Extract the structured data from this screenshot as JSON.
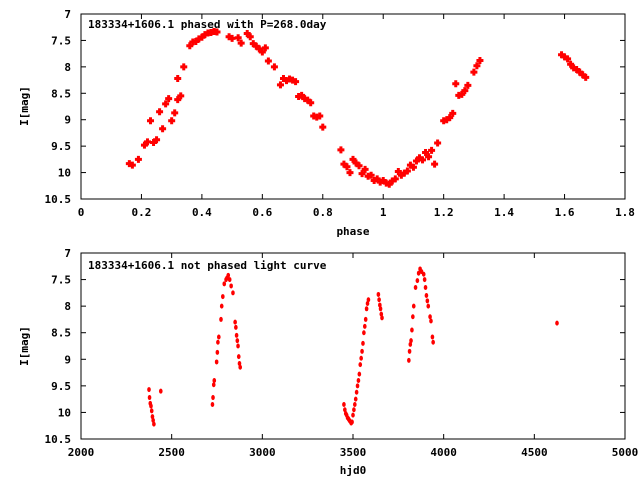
{
  "chart_data": [
    {
      "type": "scatter",
      "title": "183334+1606.1 phased with P=268.0day",
      "xlabel": "phase",
      "ylabel": "I[mag]",
      "xlim": [
        0,
        1.8
      ],
      "ylim": [
        10.5,
        7
      ],
      "y_inverted": true,
      "grid": false,
      "xticks": [
        "0",
        "0.2",
        "0.4",
        "0.6",
        "0.8",
        "1",
        "1.2",
        "1.4",
        "1.6",
        "1.8"
      ],
      "yticks": [
        "7",
        "7.5",
        "8",
        "8.5",
        "9",
        "9.5",
        "10",
        "10.5"
      ],
      "marker_color": "#ff0000",
      "points": [
        [
          0.16,
          9.83
        ],
        [
          0.17,
          9.86
        ],
        [
          0.19,
          9.75
        ],
        [
          0.21,
          9.48
        ],
        [
          0.22,
          9.42
        ],
        [
          0.23,
          9.02
        ],
        [
          0.24,
          9.43
        ],
        [
          0.25,
          9.38
        ],
        [
          0.26,
          8.85
        ],
        [
          0.27,
          9.17
        ],
        [
          0.28,
          8.7
        ],
        [
          0.29,
          8.6
        ],
        [
          0.3,
          9.02
        ],
        [
          0.31,
          8.87
        ],
        [
          0.32,
          8.62
        ],
        [
          0.32,
          8.22
        ],
        [
          0.33,
          8.55
        ],
        [
          0.34,
          8.0
        ],
        [
          0.36,
          7.6
        ],
        [
          0.37,
          7.53
        ],
        [
          0.38,
          7.52
        ],
        [
          0.39,
          7.47
        ],
        [
          0.4,
          7.44
        ],
        [
          0.41,
          7.39
        ],
        [
          0.42,
          7.36
        ],
        [
          0.43,
          7.35
        ],
        [
          0.44,
          7.33
        ],
        [
          0.45,
          7.34
        ],
        [
          0.49,
          7.43
        ],
        [
          0.5,
          7.46
        ],
        [
          0.52,
          7.45
        ],
        [
          0.53,
          7.55
        ],
        [
          0.55,
          7.37
        ],
        [
          0.56,
          7.43
        ],
        [
          0.57,
          7.56
        ],
        [
          0.58,
          7.61
        ],
        [
          0.59,
          7.66
        ],
        [
          0.6,
          7.72
        ],
        [
          0.61,
          7.64
        ],
        [
          0.62,
          7.89
        ],
        [
          0.64,
          8.0
        ],
        [
          0.66,
          8.34
        ],
        [
          0.67,
          8.22
        ],
        [
          0.68,
          8.26
        ],
        [
          0.69,
          8.23
        ],
        [
          0.7,
          8.25
        ],
        [
          0.71,
          8.28
        ],
        [
          0.72,
          8.56
        ],
        [
          0.73,
          8.54
        ],
        [
          0.74,
          8.6
        ],
        [
          0.75,
          8.63
        ],
        [
          0.76,
          8.68
        ],
        [
          0.77,
          8.93
        ],
        [
          0.78,
          8.95
        ],
        [
          0.79,
          8.93
        ],
        [
          0.8,
          9.14
        ],
        [
          0.86,
          9.57
        ],
        [
          0.87,
          9.84
        ],
        [
          0.88,
          9.89
        ],
        [
          0.89,
          10.0
        ],
        [
          0.9,
          9.75
        ],
        [
          0.91,
          9.82
        ],
        [
          0.92,
          9.87
        ],
        [
          0.93,
          10.02
        ],
        [
          0.94,
          9.94
        ],
        [
          0.95,
          10.07
        ],
        [
          0.96,
          10.05
        ],
        [
          0.97,
          10.15
        ],
        [
          0.98,
          10.12
        ],
        [
          0.99,
          10.18
        ],
        [
          1.0,
          10.15
        ],
        [
          1.01,
          10.2
        ],
        [
          1.02,
          10.22
        ],
        [
          1.03,
          10.16
        ],
        [
          1.04,
          10.12
        ],
        [
          1.05,
          9.98
        ],
        [
          1.06,
          10.05
        ],
        [
          1.07,
          10.01
        ],
        [
          1.08,
          9.97
        ],
        [
          1.09,
          9.86
        ],
        [
          1.1,
          9.9
        ],
        [
          1.11,
          9.78
        ],
        [
          1.12,
          9.72
        ],
        [
          1.13,
          9.76
        ],
        [
          1.14,
          9.62
        ],
        [
          1.15,
          9.7
        ],
        [
          1.16,
          9.58
        ],
        [
          1.17,
          9.84
        ],
        [
          1.18,
          9.44
        ],
        [
          1.2,
          9.02
        ],
        [
          1.21,
          9.0
        ],
        [
          1.22,
          8.96
        ],
        [
          1.23,
          8.88
        ],
        [
          1.24,
          8.32
        ],
        [
          1.25,
          8.54
        ],
        [
          1.26,
          8.52
        ],
        [
          1.27,
          8.45
        ],
        [
          1.28,
          8.35
        ],
        [
          1.3,
          8.1
        ],
        [
          1.31,
          7.98
        ],
        [
          1.32,
          7.88
        ],
        [
          1.59,
          7.77
        ],
        [
          1.6,
          7.81
        ],
        [
          1.61,
          7.85
        ],
        [
          1.62,
          7.95
        ],
        [
          1.63,
          8.02
        ],
        [
          1.64,
          8.05
        ],
        [
          1.65,
          8.1
        ],
        [
          1.66,
          8.15
        ],
        [
          1.67,
          8.2
        ]
      ]
    },
    {
      "type": "scatter",
      "title": "183334+1606.1 not phased light curve",
      "xlabel": "hjd0",
      "ylabel": "I[mag]",
      "xlim": [
        2000,
        5000
      ],
      "ylim": [
        10.5,
        7
      ],
      "y_inverted": true,
      "grid": false,
      "xticks": [
        "2000",
        "2500",
        "3000",
        "3500",
        "4000",
        "4500",
        "5000"
      ],
      "yticks": [
        "7",
        "7.5",
        "8",
        "8.5",
        "9",
        "9.5",
        "10",
        "10.5"
      ],
      "marker_color": "#ff0000",
      "points": [
        [
          2375,
          9.57
        ],
        [
          2378,
          9.72
        ],
        [
          2382,
          9.83
        ],
        [
          2386,
          9.88
        ],
        [
          2390,
          9.97
        ],
        [
          2394,
          10.08
        ],
        [
          2398,
          10.15
        ],
        [
          2402,
          10.22
        ],
        [
          2440,
          9.6
        ],
        [
          2725,
          9.85
        ],
        [
          2728,
          9.72
        ],
        [
          2732,
          9.48
        ],
        [
          2735,
          9.4
        ],
        [
          2748,
          9.05
        ],
        [
          2752,
          8.87
        ],
        [
          2755,
          8.68
        ],
        [
          2760,
          8.58
        ],
        [
          2772,
          8.25
        ],
        [
          2776,
          8.0
        ],
        [
          2782,
          7.82
        ],
        [
          2790,
          7.58
        ],
        [
          2800,
          7.5
        ],
        [
          2805,
          7.47
        ],
        [
          2812,
          7.42
        ],
        [
          2820,
          7.5
        ],
        [
          2828,
          7.62
        ],
        [
          2838,
          7.75
        ],
        [
          2850,
          8.3
        ],
        [
          2854,
          8.4
        ],
        [
          2858,
          8.55
        ],
        [
          2862,
          8.65
        ],
        [
          2866,
          8.75
        ],
        [
          2870,
          8.95
        ],
        [
          2874,
          9.08
        ],
        [
          2878,
          9.15
        ],
        [
          3450,
          9.85
        ],
        [
          3455,
          9.95
        ],
        [
          3460,
          10.02
        ],
        [
          3465,
          10.05
        ],
        [
          3470,
          10.1
        ],
        [
          3475,
          10.12
        ],
        [
          3480,
          10.15
        ],
        [
          3485,
          10.17
        ],
        [
          3490,
          10.2
        ],
        [
          3495,
          10.18
        ],
        [
          3500,
          10.05
        ],
        [
          3505,
          9.95
        ],
        [
          3510,
          9.85
        ],
        [
          3515,
          9.75
        ],
        [
          3520,
          9.62
        ],
        [
          3525,
          9.5
        ],
        [
          3530,
          9.4
        ],
        [
          3535,
          9.28
        ],
        [
          3540,
          9.1
        ],
        [
          3545,
          8.98
        ],
        [
          3550,
          8.85
        ],
        [
          3555,
          8.7
        ],
        [
          3560,
          8.5
        ],
        [
          3565,
          8.38
        ],
        [
          3570,
          8.25
        ],
        [
          3575,
          8.05
        ],
        [
          3580,
          7.95
        ],
        [
          3585,
          7.88
        ],
        [
          3640,
          7.78
        ],
        [
          3644,
          7.88
        ],
        [
          3648,
          7.98
        ],
        [
          3652,
          8.05
        ],
        [
          3656,
          8.15
        ],
        [
          3660,
          8.22
        ],
        [
          3808,
          9.02
        ],
        [
          3812,
          8.85
        ],
        [
          3816,
          8.72
        ],
        [
          3820,
          8.65
        ],
        [
          3825,
          8.45
        ],
        [
          3830,
          8.2
        ],
        [
          3835,
          8.0
        ],
        [
          3845,
          7.65
        ],
        [
          3855,
          7.52
        ],
        [
          3862,
          7.38
        ],
        [
          3870,
          7.3
        ],
        [
          3878,
          7.35
        ],
        [
          3890,
          7.4
        ],
        [
          3895,
          7.5
        ],
        [
          3900,
          7.65
        ],
        [
          3905,
          7.8
        ],
        [
          3910,
          7.9
        ],
        [
          3915,
          8.0
        ],
        [
          3925,
          8.2
        ],
        [
          3930,
          8.28
        ],
        [
          3938,
          8.58
        ],
        [
          3942,
          8.68
        ],
        [
          4625,
          8.32
        ]
      ]
    }
  ]
}
